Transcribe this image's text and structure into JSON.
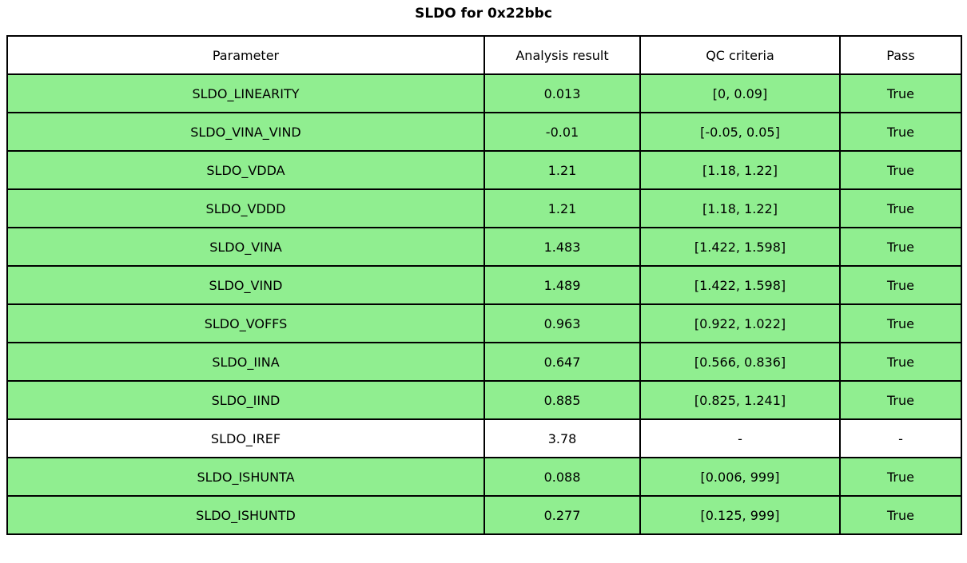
{
  "title": "SLDO for 0x22bbc",
  "colors": {
    "pass_row": "#90EE90",
    "neutral_row": "#FFFFFF",
    "border": "#000000",
    "text": "#000000",
    "background": "#FFFFFF"
  },
  "chart_data": {
    "type": "table",
    "title": "SLDO for 0x22bbc",
    "columns": [
      "Parameter",
      "Analysis result",
      "QC criteria",
      "Pass"
    ],
    "rows": [
      {
        "parameter": "SLDO_LINEARITY",
        "result": "0.013",
        "criteria": "[0, 0.09]",
        "pass": "True",
        "highlight": true
      },
      {
        "parameter": "SLDO_VINA_VIND",
        "result": "-0.01",
        "criteria": "[-0.05, 0.05]",
        "pass": "True",
        "highlight": true
      },
      {
        "parameter": "SLDO_VDDA",
        "result": "1.21",
        "criteria": "[1.18, 1.22]",
        "pass": "True",
        "highlight": true
      },
      {
        "parameter": "SLDO_VDDD",
        "result": "1.21",
        "criteria": "[1.18, 1.22]",
        "pass": "True",
        "highlight": true
      },
      {
        "parameter": "SLDO_VINA",
        "result": "1.483",
        "criteria": "[1.422, 1.598]",
        "pass": "True",
        "highlight": true
      },
      {
        "parameter": "SLDO_VIND",
        "result": "1.489",
        "criteria": "[1.422, 1.598]",
        "pass": "True",
        "highlight": true
      },
      {
        "parameter": "SLDO_VOFFS",
        "result": "0.963",
        "criteria": "[0.922, 1.022]",
        "pass": "True",
        "highlight": true
      },
      {
        "parameter": "SLDO_IINA",
        "result": "0.647",
        "criteria": "[0.566, 0.836]",
        "pass": "True",
        "highlight": true
      },
      {
        "parameter": "SLDO_IIND",
        "result": "0.885",
        "criteria": "[0.825, 1.241]",
        "pass": "True",
        "highlight": true
      },
      {
        "parameter": "SLDO_IREF",
        "result": "3.78",
        "criteria": "-",
        "pass": "-",
        "highlight": false
      },
      {
        "parameter": "SLDO_ISHUNTA",
        "result": "0.088",
        "criteria": "[0.006, 999]",
        "pass": "True",
        "highlight": true
      },
      {
        "parameter": "SLDO_ISHUNTD",
        "result": "0.277",
        "criteria": "[0.125, 999]",
        "pass": "True",
        "highlight": true
      }
    ]
  }
}
